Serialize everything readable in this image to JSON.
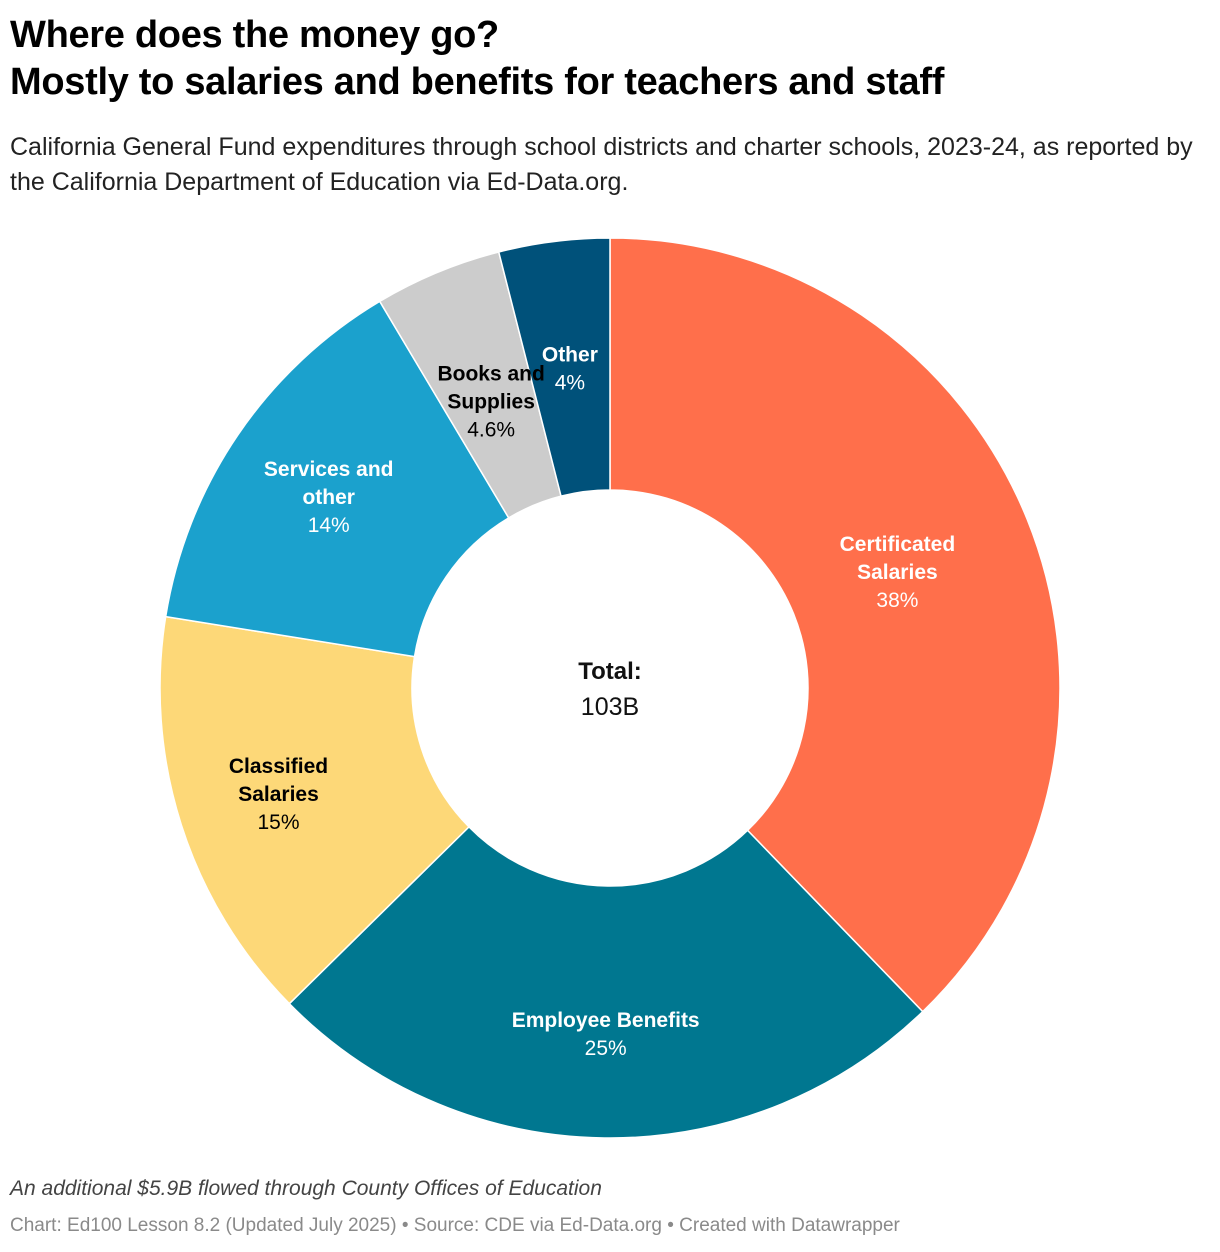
{
  "header": {
    "title_line1": "Where does the money go?",
    "title_line2": "Mostly to salaries and benefits for teachers and staff",
    "subtitle": "California General Fund expenditures through school districts and charter schools, 2023-24, as reported by the California Department of Education via Ed-Data.org."
  },
  "chart_data": {
    "type": "pie",
    "donut": true,
    "center_label": "Total:",
    "center_value": "103B",
    "slices": [
      {
        "name": "Certificated Salaries",
        "label_lines": [
          "Certificated",
          "Salaries"
        ],
        "value": 38,
        "value_label": "38%",
        "color": "#ff6f4b",
        "text_color": "#ffffff"
      },
      {
        "name": "Employee Benefits",
        "label_lines": [
          "Employee Benefits"
        ],
        "value": 25,
        "value_label": "25%",
        "color": "#007790",
        "text_color": "#ffffff"
      },
      {
        "name": "Classified Salaries",
        "label_lines": [
          "Classified",
          "Salaries"
        ],
        "value": 15,
        "value_label": "15%",
        "color": "#fdd878",
        "text_color": "#000000"
      },
      {
        "name": "Services and other",
        "label_lines": [
          "Services and",
          "other"
        ],
        "value": 14,
        "value_label": "14%",
        "color": "#1ba1cd",
        "text_color": "#ffffff"
      },
      {
        "name": "Books and Supplies",
        "label_lines": [
          "Books and",
          "Supplies"
        ],
        "value": 4.6,
        "value_label": "4.6%",
        "color": "#cccccc",
        "text_color": "#000000"
      },
      {
        "name": "Other",
        "label_lines": [
          "Other"
        ],
        "value": 4,
        "value_label": "4%",
        "color": "#00517a",
        "text_color": "#ffffff"
      }
    ]
  },
  "notes": {
    "note": "An additional $5.9B flowed through County Offices of Education",
    "footer": "Chart: Ed100 Lesson 8.2 (Updated July 2025) • Source: CDE via Ed-Data.org • Created with Datawrapper"
  }
}
